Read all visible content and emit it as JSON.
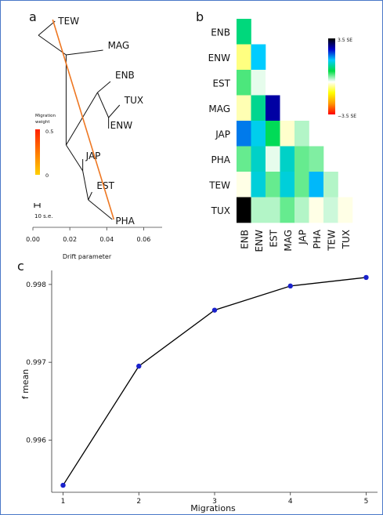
{
  "chart_data": [
    {
      "type": "tree",
      "panel_letter": "a",
      "title": "",
      "xlabel": "Drift parameter",
      "ylabel": "",
      "xticks": [
        "0.00",
        "0.02",
        "0.04",
        "0.06"
      ],
      "xlim": [
        0,
        0.07
      ],
      "leaves": [
        {
          "name": "TEW",
          "x": 0.012
        },
        {
          "name": "MAG",
          "x": 0.038
        },
        {
          "name": "ENB",
          "x": 0.042
        },
        {
          "name": "TUX",
          "x": 0.047
        },
        {
          "name": "ENW",
          "x": 0.041
        },
        {
          "name": "JAP",
          "x": 0.027
        },
        {
          "name": "EST",
          "x": 0.032
        },
        {
          "name": "PHA",
          "x": 0.043
        }
      ],
      "migration": {
        "from": "TEW",
        "to": "PHA",
        "weight": 0.5,
        "color": "#ee7722"
      },
      "migration_legend": {
        "title_line1": "Migration",
        "title_line2": "weight",
        "max_label": "0.5",
        "min_label": "0",
        "colors": [
          "#ff2200",
          "#ffd000"
        ]
      },
      "scale_bar_label": "10 s.e."
    },
    {
      "type": "heatmap",
      "panel_letter": "b",
      "title": "",
      "rows": [
        "ENB",
        "ENW",
        "EST",
        "MAG",
        "JAP",
        "PHA",
        "TEW",
        "TUX"
      ],
      "columns": [
        "ENB",
        "ENW",
        "EST",
        "MAG",
        "JAP",
        "PHA",
        "TEW",
        "TUX"
      ],
      "value_unit": "SE",
      "range": [
        -3.5,
        3.5
      ],
      "colorbar": {
        "max_label": "3.5 SE",
        "min_label": "−3.5 SE",
        "colors": [
          "#000000",
          "#0000cc",
          "#00ccff",
          "#00dd44",
          "#ffffff",
          "#ffff00",
          "#ff9900",
          "#ff0000"
        ]
      },
      "values": [
        [
          0.8
        ],
        [
          -1.0,
          1.5
        ],
        [
          0.2,
          -0.4,
          -0.5
        ],
        [
          -0.8,
          0.9,
          2.7,
          -0.5
        ],
        [
          1.9,
          1.4,
          0.6,
          -0.7,
          -0.2
        ],
        [
          0.1,
          1.2,
          -0.4,
          1.2,
          0.1,
          0.0
        ],
        [
          -0.6,
          1.3,
          0.1,
          1.3,
          0.1,
          1.6,
          -0.2
        ],
        [
          3.5,
          -0.2,
          -0.2,
          0.1,
          -0.2,
          -0.6,
          -0.3,
          -0.6
        ]
      ]
    },
    {
      "type": "line",
      "panel_letter": "c",
      "title": "",
      "xlabel": "Migrations",
      "ylabel": "f mean",
      "x": [
        1,
        2,
        3,
        4,
        5
      ],
      "values": [
        0.99542,
        0.99695,
        0.99767,
        0.99798,
        0.99809
      ],
      "xlim": [
        0.85,
        5.15
      ],
      "ylim": [
        0.99533,
        0.99818
      ],
      "xticks": [
        "1",
        "2",
        "3",
        "4",
        "5"
      ],
      "yticks": [
        "0.996",
        "0.997",
        "0.998"
      ],
      "ytick_values": [
        0.996,
        0.997,
        0.998
      ],
      "line_color": "#000000",
      "point_color": "#1a22cc"
    }
  ]
}
